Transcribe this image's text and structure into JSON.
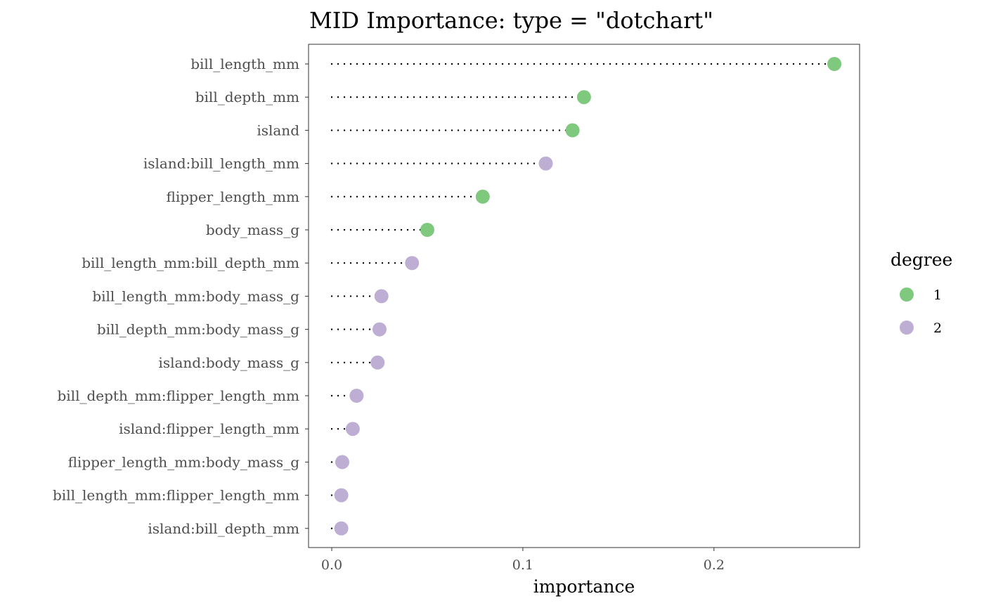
{
  "chart_data": {
    "type": "scatter",
    "title": "MID Importance: type = \"dotchart\"",
    "xlabel": "importance",
    "ylabel": "",
    "xlim": [
      -0.012,
      0.275
    ],
    "xticks": [
      0.0,
      0.1,
      0.2
    ],
    "xtick_labels": [
      "0.0",
      "0.1",
      "0.2"
    ],
    "grid": false,
    "legend_placement": "right",
    "legend": {
      "title": "degree",
      "entries": [
        {
          "label": "1",
          "color": "#7fc97f"
        },
        {
          "label": "2",
          "color": "#beaed4"
        }
      ]
    },
    "points": [
      {
        "term": "bill_length_mm",
        "importance": 0.263,
        "degree": "1"
      },
      {
        "term": "bill_depth_mm",
        "importance": 0.132,
        "degree": "1"
      },
      {
        "term": "island",
        "importance": 0.126,
        "degree": "1"
      },
      {
        "term": "island:bill_length_mm",
        "importance": 0.112,
        "degree": "2"
      },
      {
        "term": "flipper_length_mm",
        "importance": 0.079,
        "degree": "1"
      },
      {
        "term": "body_mass_g",
        "importance": 0.05,
        "degree": "1"
      },
      {
        "term": "bill_length_mm:bill_depth_mm",
        "importance": 0.042,
        "degree": "2"
      },
      {
        "term": "bill_length_mm:body_mass_g",
        "importance": 0.026,
        "degree": "2"
      },
      {
        "term": "bill_depth_mm:body_mass_g",
        "importance": 0.025,
        "degree": "2"
      },
      {
        "term": "island:body_mass_g",
        "importance": 0.024,
        "degree": "2"
      },
      {
        "term": "bill_depth_mm:flipper_length_mm",
        "importance": 0.013,
        "degree": "2"
      },
      {
        "term": "island:flipper_length_mm",
        "importance": 0.011,
        "degree": "2"
      },
      {
        "term": "flipper_length_mm:body_mass_g",
        "importance": 0.0055,
        "degree": "2"
      },
      {
        "term": "bill_length_mm:flipper_length_mm",
        "importance": 0.005,
        "degree": "2"
      },
      {
        "term": "island:bill_depth_mm",
        "importance": 0.005,
        "degree": "2"
      }
    ]
  }
}
